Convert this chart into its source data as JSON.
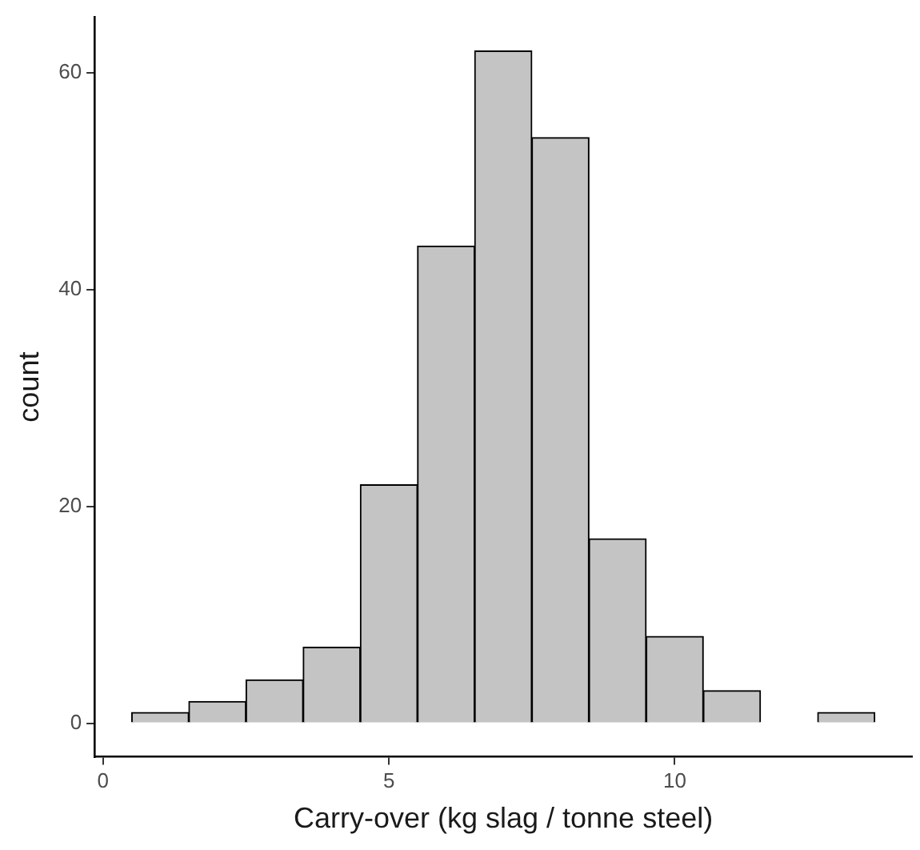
{
  "chart_data": {
    "type": "histogram",
    "xlabel": "Carry-over (kg slag / tonne steel)",
    "ylabel": "count",
    "bins": [
      0.5,
      1.5,
      2.5,
      3.5,
      4.5,
      5.5,
      6.5,
      7.5,
      8.5,
      9.5,
      10.5,
      11.5,
      12.5,
      13.5
    ],
    "values": [
      1,
      2,
      4,
      7,
      22,
      44,
      62,
      54,
      17,
      8,
      3,
      0,
      1
    ],
    "color": "#c4c4c4",
    "xlim": [
      -0.15,
      14.15
    ],
    "xticks": [
      0,
      5,
      10
    ],
    "ylim": [
      -3.1,
      65.1
    ],
    "yticks": [
      0,
      20,
      40,
      60
    ],
    "grid": false,
    "legend": false
  }
}
